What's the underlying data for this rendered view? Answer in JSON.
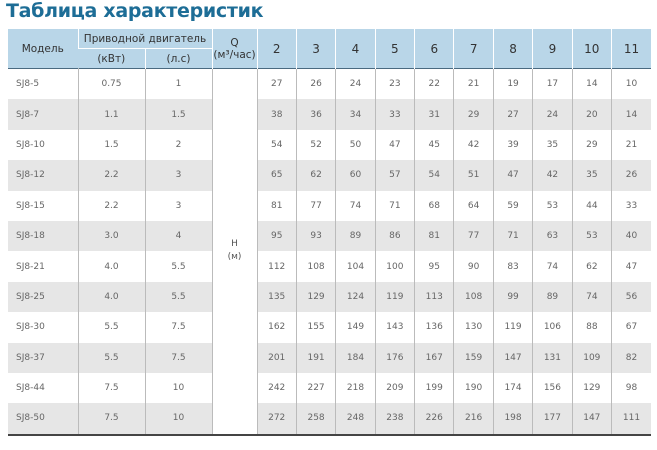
{
  "title": "Таблица характеристик",
  "header": {
    "model": "Модель",
    "motor": "Приводной двигатель",
    "kw": "(кВт)",
    "hp": "(л.с)",
    "q": "Q",
    "q_unit": "(м³/час)",
    "flows": [
      "2",
      "3",
      "4",
      "5",
      "6",
      "7",
      "8",
      "9",
      "10",
      "11"
    ]
  },
  "h_label": "H",
  "h_unit": "(м)",
  "rows": [
    {
      "model": "SJ8-5",
      "kw": "0.75",
      "hp": "1",
      "h": [
        "27",
        "26",
        "24",
        "23",
        "22",
        "21",
        "19",
        "17",
        "14",
        "10"
      ]
    },
    {
      "model": "SJ8-7",
      "kw": "1.1",
      "hp": "1.5",
      "h": [
        "38",
        "36",
        "34",
        "33",
        "31",
        "29",
        "27",
        "24",
        "20",
        "14"
      ]
    },
    {
      "model": "SJ8-10",
      "kw": "1.5",
      "hp": "2",
      "h": [
        "54",
        "52",
        "50",
        "47",
        "45",
        "42",
        "39",
        "35",
        "29",
        "21"
      ]
    },
    {
      "model": "SJ8-12",
      "kw": "2.2",
      "hp": "3",
      "h": [
        "65",
        "62",
        "60",
        "57",
        "54",
        "51",
        "47",
        "42",
        "35",
        "26"
      ]
    },
    {
      "model": "SJ8-15",
      "kw": "2.2",
      "hp": "3",
      "h": [
        "81",
        "77",
        "74",
        "71",
        "68",
        "64",
        "59",
        "53",
        "44",
        "33"
      ]
    },
    {
      "model": "SJ8-18",
      "kw": "3.0",
      "hp": "4",
      "h": [
        "95",
        "93",
        "89",
        "86",
        "81",
        "77",
        "71",
        "63",
        "53",
        "40"
      ]
    },
    {
      "model": "SJ8-21",
      "kw": "4.0",
      "hp": "5.5",
      "h": [
        "112",
        "108",
        "104",
        "100",
        "95",
        "90",
        "83",
        "74",
        "62",
        "47"
      ]
    },
    {
      "model": "SJ8-25",
      "kw": "4.0",
      "hp": "5.5",
      "h": [
        "135",
        "129",
        "124",
        "119",
        "113",
        "108",
        "99",
        "89",
        "74",
        "56"
      ]
    },
    {
      "model": "SJ8-30",
      "kw": "5.5",
      "hp": "7.5",
      "h": [
        "162",
        "155",
        "149",
        "143",
        "136",
        "130",
        "119",
        "106",
        "88",
        "67"
      ]
    },
    {
      "model": "SJ8-37",
      "kw": "5.5",
      "hp": "7.5",
      "h": [
        "201",
        "191",
        "184",
        "176",
        "167",
        "159",
        "147",
        "131",
        "109",
        "82"
      ]
    },
    {
      "model": "SJ8-44",
      "kw": "7.5",
      "hp": "10",
      "h": [
        "242",
        "227",
        "218",
        "209",
        "199",
        "190",
        "174",
        "156",
        "129",
        "98"
      ]
    },
    {
      "model": "SJ8-50",
      "kw": "7.5",
      "hp": "10",
      "h": [
        "272",
        "258",
        "248",
        "238",
        "226",
        "216",
        "198",
        "177",
        "147",
        "111"
      ]
    }
  ],
  "colors": {
    "title": "#1d6d96",
    "header_bg": "#b9d6e8",
    "stripe": "#e6e6e6"
  }
}
